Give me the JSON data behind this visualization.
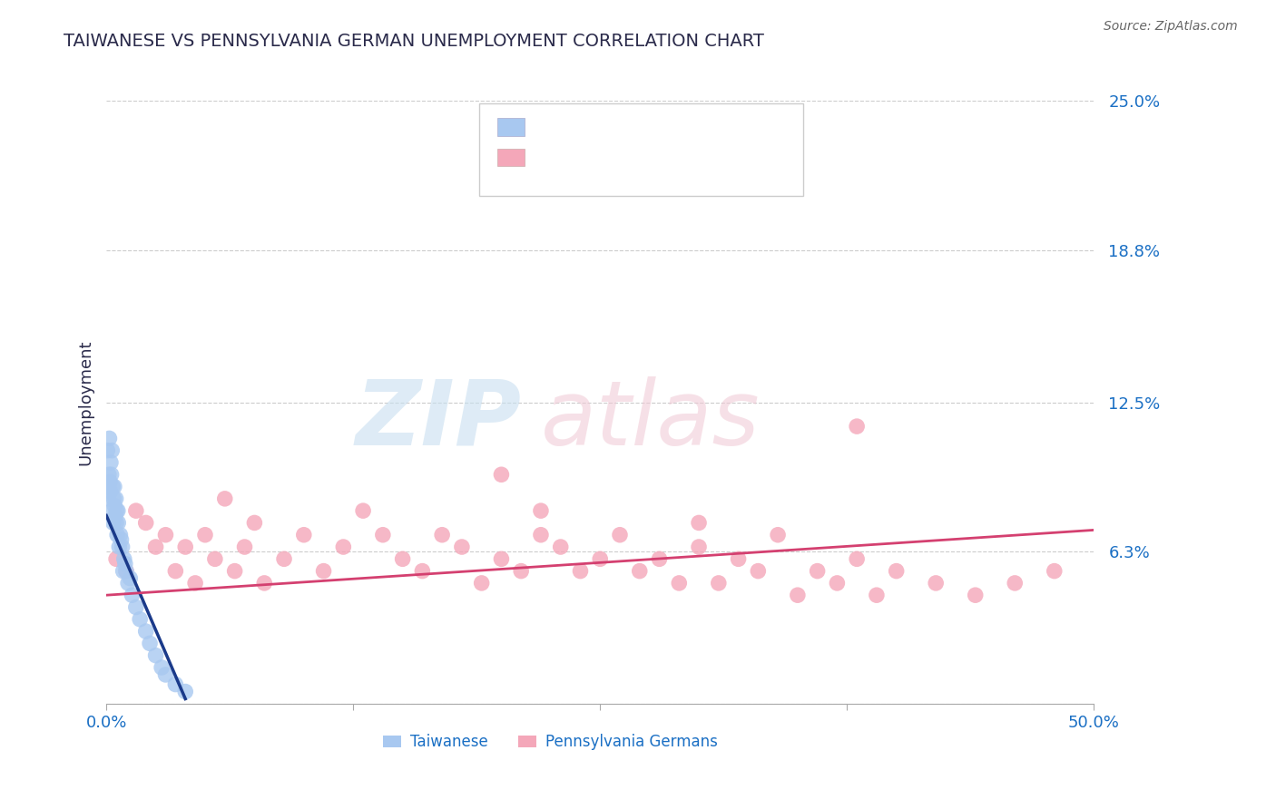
{
  "title": "TAIWANESE VS PENNSYLVANIA GERMAN UNEMPLOYMENT CORRELATION CHART",
  "source": "Source: ZipAtlas.com",
  "xlabel_taiwanese": "Taiwanese",
  "xlabel_pagerman": "Pennsylvania Germans",
  "ylabel": "Unemployment",
  "xlim": [
    0.0,
    50.0
  ],
  "ylim": [
    0.0,
    25.0
  ],
  "yticks": [
    0.0,
    6.3,
    12.5,
    18.8,
    25.0
  ],
  "ytick_labels": [
    "",
    "6.3%",
    "12.5%",
    "18.8%",
    "25.0%"
  ],
  "xticks": [
    0.0,
    12.5,
    25.0,
    37.5,
    50.0
  ],
  "xtick_labels": [
    "0.0%",
    "",
    "",
    "",
    "50.0%"
  ],
  "color_taiwanese": "#a8c8f0",
  "color_pagerman": "#f4a7b9",
  "color_line_taiwanese": "#1a3a8a",
  "color_line_pagerman": "#d44070",
  "color_title": "#2a2a4a",
  "color_axis_labels": "#1a6fc4",
  "taiwanese_x": [
    0.05,
    0.08,
    0.1,
    0.12,
    0.15,
    0.18,
    0.2,
    0.22,
    0.25,
    0.28,
    0.3,
    0.32,
    0.35,
    0.38,
    0.4,
    0.42,
    0.45,
    0.48,
    0.5,
    0.52,
    0.55,
    0.58,
    0.6,
    0.65,
    0.7,
    0.75,
    0.8,
    0.85,
    0.9,
    0.95,
    1.0,
    1.1,
    1.2,
    1.3,
    1.5,
    1.7,
    2.0,
    2.2,
    2.5,
    2.8,
    3.0,
    3.5,
    4.0
  ],
  "taiwanese_y": [
    10.5,
    9.0,
    8.5,
    9.5,
    11.0,
    9.2,
    8.8,
    10.0,
    9.5,
    10.5,
    8.0,
    9.0,
    7.5,
    8.5,
    9.0,
    8.2,
    7.8,
    8.5,
    7.5,
    8.0,
    7.0,
    8.0,
    7.5,
    6.5,
    7.0,
    6.8,
    6.5,
    5.5,
    6.0,
    5.8,
    5.5,
    5.0,
    5.2,
    4.5,
    4.0,
    3.5,
    3.0,
    2.5,
    2.0,
    1.5,
    1.2,
    0.8,
    0.5
  ],
  "pagerman_x": [
    0.5,
    1.0,
    1.5,
    2.0,
    2.5,
    3.0,
    3.5,
    4.0,
    4.5,
    5.0,
    5.5,
    6.0,
    6.5,
    7.0,
    7.5,
    8.0,
    9.0,
    10.0,
    11.0,
    12.0,
    13.0,
    14.0,
    15.0,
    16.0,
    17.0,
    18.0,
    19.0,
    20.0,
    21.0,
    22.0,
    23.0,
    24.0,
    25.0,
    26.0,
    27.0,
    28.0,
    29.0,
    30.0,
    31.0,
    32.0,
    33.0,
    34.0,
    35.0,
    36.0,
    37.0,
    38.0,
    39.0,
    40.0,
    42.0,
    44.0,
    46.0,
    48.0,
    20.0,
    22.0,
    38.0,
    30.0
  ],
  "pagerman_y": [
    6.0,
    5.5,
    8.0,
    7.5,
    6.5,
    7.0,
    5.5,
    6.5,
    5.0,
    7.0,
    6.0,
    8.5,
    5.5,
    6.5,
    7.5,
    5.0,
    6.0,
    7.0,
    5.5,
    6.5,
    8.0,
    7.0,
    6.0,
    5.5,
    7.0,
    6.5,
    5.0,
    6.0,
    5.5,
    7.0,
    6.5,
    5.5,
    6.0,
    7.0,
    5.5,
    6.0,
    5.0,
    6.5,
    5.0,
    6.0,
    5.5,
    7.0,
    4.5,
    5.5,
    5.0,
    6.0,
    4.5,
    5.5,
    5.0,
    4.5,
    5.0,
    5.5,
    9.5,
    8.0,
    11.5,
    7.5
  ],
  "tw_line_x": [
    0.0,
    4.0
  ],
  "tw_line_y": [
    7.8,
    0.2
  ],
  "pg_line_x": [
    0.0,
    50.0
  ],
  "pg_line_y": [
    4.5,
    7.2
  ]
}
